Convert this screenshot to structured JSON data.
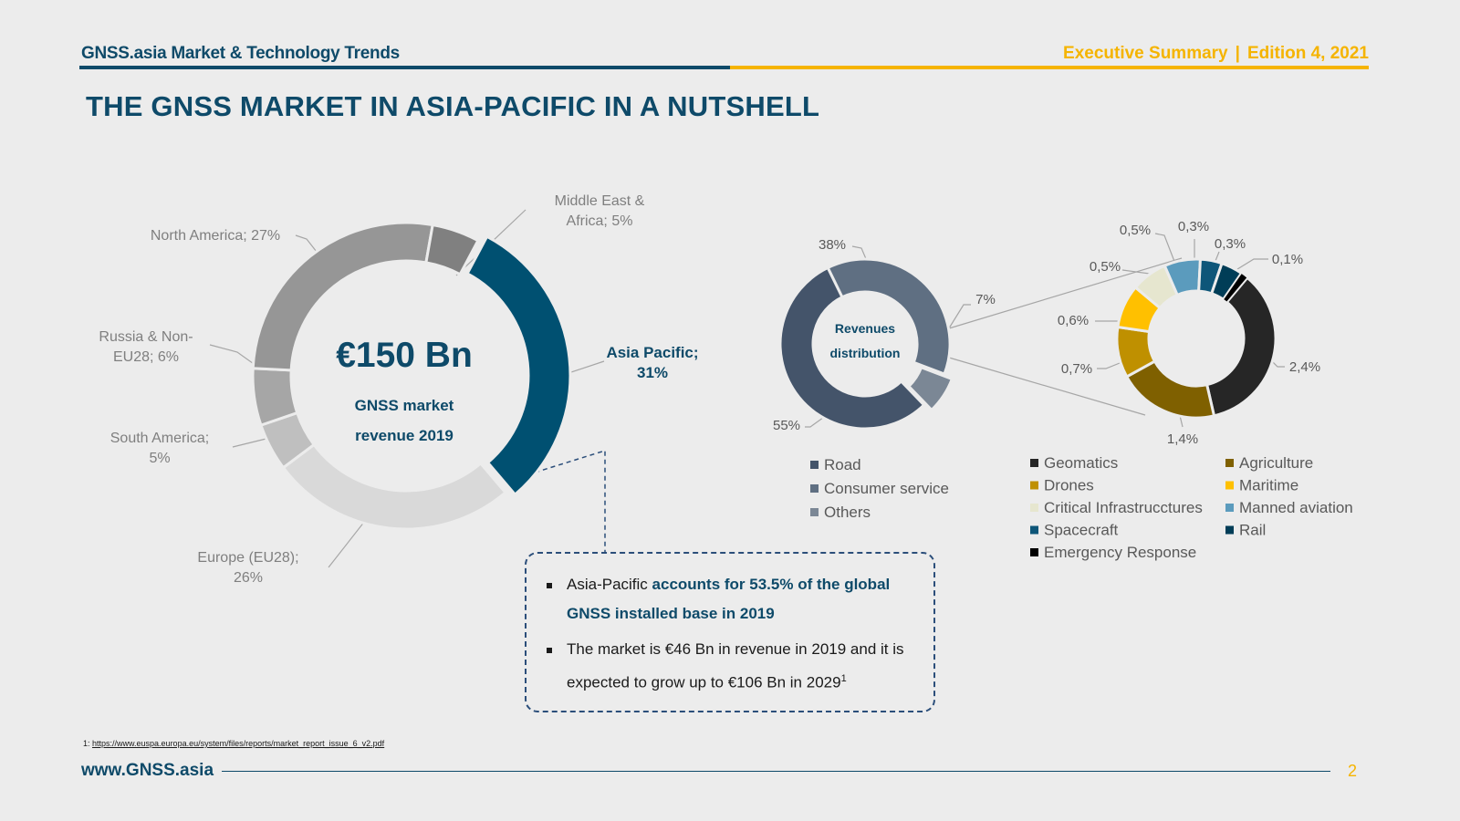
{
  "header": {
    "left_title": "GNSS.asia Market & Technology Trends",
    "right_section": "Executive Summary",
    "right_separator": "|",
    "right_edition": "Edition 4, 2021"
  },
  "slide_title": "THE GNSS MARKET IN ASIA-PACIFIC IN A NUTSHELL",
  "colors": {
    "brand_blue": "#0e4a69",
    "brand_yellow": "#f5b400",
    "asia_pacific": "#005071"
  },
  "chart_data": [
    {
      "type": "pie",
      "variant": "donut",
      "center_value": "€150 Bn",
      "center_caption_line1": "GNSS market",
      "center_caption_line2": "revenue 2019",
      "slices": [
        {
          "name": "Asia Pacific",
          "value": 31,
          "label_lines": [
            "Asia Pacific;",
            "31%"
          ],
          "color": "#005071",
          "highlight": true
        },
        {
          "name": "Europe (EU28)",
          "value": 26,
          "label_lines": [
            "Europe (EU28);",
            "26%"
          ],
          "color": "#d9d9d9"
        },
        {
          "name": "South America",
          "value": 5,
          "label_lines": [
            "South America;",
            "5%"
          ],
          "color": "#bfbfbf"
        },
        {
          "name": "Russia & Non-EU28",
          "value": 6,
          "label_lines": [
            "Russia & Non-",
            "EU28; 6%"
          ],
          "color": "#a6a6a6"
        },
        {
          "name": "North America",
          "value": 27,
          "label_lines": [
            "North America; 27%"
          ],
          "color": "#969696"
        },
        {
          "name": "Middle East & Africa",
          "value": 5,
          "label_lines": [
            "Middle East &",
            "Africa; 5%"
          ],
          "color": "#808080"
        }
      ]
    },
    {
      "type": "pie",
      "variant": "donut",
      "center_caption_line1": "Revenues",
      "center_caption_line2": "distribution",
      "slices": [
        {
          "name": "Road",
          "value": 55,
          "label": "55%",
          "color": "#44546a"
        },
        {
          "name": "Consumer service",
          "value": 38,
          "label": "38%",
          "color": "#5f6f82"
        },
        {
          "name": "Others",
          "value": 7,
          "label": "7%",
          "color": "#7b8795"
        }
      ]
    },
    {
      "type": "pie",
      "variant": "donut",
      "breakdown_of": "Others",
      "slices": [
        {
          "name": "Geomatics",
          "value": 2.4,
          "label": "2,4%",
          "color": "#262626"
        },
        {
          "name": "Agriculture",
          "value": 1.4,
          "label": "1,4%",
          "color": "#7f6000"
        },
        {
          "name": "Drones",
          "value": 0.7,
          "label": "0,7%",
          "color": "#bf9000"
        },
        {
          "name": "Maritime",
          "value": 0.6,
          "label": "0,6%",
          "color": "#ffc000"
        },
        {
          "name": "Critical Infrastrucctures",
          "value": 0.5,
          "label": "0,5%",
          "color": "#e6e6cf"
        },
        {
          "name": "Manned aviation",
          "value": 0.5,
          "label": "0,5%",
          "color": "#5b9bbd"
        },
        {
          "name": "Spacecraft",
          "value": 0.3,
          "label": "0,3%",
          "color": "#0e5679"
        },
        {
          "name": "Rail",
          "value": 0.3,
          "label": "0,3%",
          "color": "#003d57"
        },
        {
          "name": "Emergency Response",
          "value": 0.1,
          "label": "0,1%",
          "color": "#000000"
        }
      ]
    }
  ],
  "callout": {
    "bullet1_plain": "Asia-Pacific ",
    "bullet1_highlight": "accounts for 53.5% of the global GNSS installed base in 2019",
    "bullet2_text": "The market is €46 Bn in revenue in 2019 and it is expected to grow up to €106 Bn in 2029",
    "bullet2_footnote_ref": "1"
  },
  "footer": {
    "footnote_prefix": "1: ",
    "footnote_url": "https://www.euspa.europa.eu/system/files/reports/market_report_issue_6_v2.pdf",
    "site": "www.GNSS.asia",
    "page_number": "2"
  }
}
